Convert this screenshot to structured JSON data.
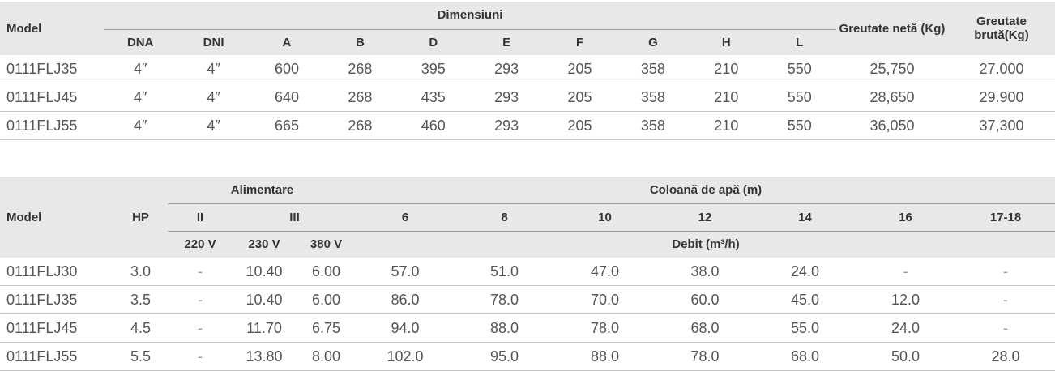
{
  "table1": {
    "header": {
      "model": "Model",
      "group": "Dimensiuni",
      "columns": [
        "DNA",
        "DNI",
        "A",
        "B",
        "D",
        "E",
        "F",
        "G",
        "H",
        "L"
      ],
      "net_weight": "Greutate netă (Kg)",
      "gross_weight": "Greutate brută(Kg)"
    },
    "rows": [
      [
        "0111FLJ35",
        "4″",
        "4″",
        "600",
        "268",
        "395",
        "293",
        "205",
        "358",
        "210",
        "550",
        "25,750",
        "27.000"
      ],
      [
        "0111FLJ45",
        "4″",
        "4″",
        "640",
        "268",
        "435",
        "293",
        "205",
        "358",
        "210",
        "550",
        "28,650",
        "29.900"
      ],
      [
        "0111FLJ55",
        "4″",
        "4″",
        "665",
        "268",
        "460",
        "293",
        "205",
        "358",
        "210",
        "550",
        "36,050",
        "37,300"
      ]
    ]
  },
  "table2": {
    "header": {
      "model": "Model",
      "hp": "HP",
      "supply": "Alimentare",
      "water_column": "Coloană de apă (m)",
      "phase_ii": "II",
      "phase_iii": "III",
      "heights": [
        "6",
        "8",
        "10",
        "12",
        "14",
        "16",
        "17-18"
      ],
      "voltages": [
        "220 V",
        "230 V",
        "380 V"
      ],
      "flow": "Debit (m³/h)"
    },
    "rows": [
      [
        "0111FLJ30",
        "3.0",
        "-",
        "10.40",
        "6.00",
        "57.0",
        "51.0",
        "47.0",
        "38.0",
        "24.0",
        "-",
        "-"
      ],
      [
        "0111FLJ35",
        "3.5",
        "-",
        "10.40",
        "6.00",
        "86.0",
        "78.0",
        "70.0",
        "60.0",
        "45.0",
        "12.0",
        "-"
      ],
      [
        "0111FLJ45",
        "4.5",
        "-",
        "11.70",
        "6.75",
        "94.0",
        "88.0",
        "78.0",
        "68.0",
        "55.0",
        "24.0",
        "-"
      ],
      [
        "0111FLJ55",
        "5.5",
        "-",
        "13.80",
        "8.00",
        "102.0",
        "95.0",
        "88.0",
        "78.0",
        "68.0",
        "50.0",
        "28.0"
      ]
    ]
  }
}
